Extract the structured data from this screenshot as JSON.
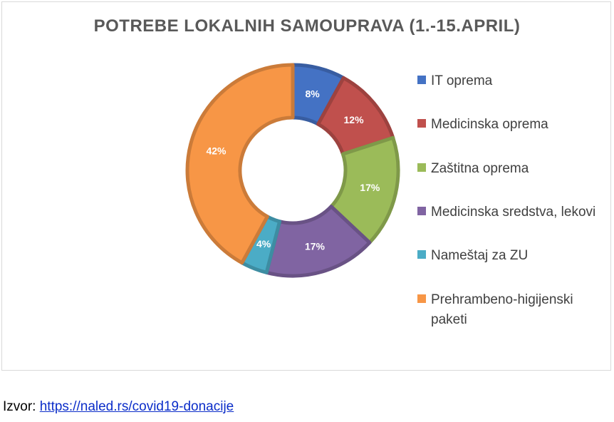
{
  "chart_data": {
    "type": "pie",
    "title": "POTREBE LOKALNIH SAMOUPRAVA (1.-15.APRIL)",
    "legend_position": "right",
    "slices": [
      {
        "label": "IT oprema",
        "value": 8,
        "value_label": "8%",
        "color": "#4472c4"
      },
      {
        "label": "Medicinska oprema",
        "value": 12,
        "value_label": "12%",
        "color": "#c0504d"
      },
      {
        "label": "Zaštitna oprema",
        "value": 17,
        "value_label": "17%",
        "color": "#9bbb59"
      },
      {
        "label": "Medicinska sredstva, lekovi",
        "value": 17,
        "value_label": "17%",
        "color": "#8064a2"
      },
      {
        "label": "Nameštaj za ZU",
        "value": 4,
        "value_label": "4%",
        "color": "#4bacc6"
      },
      {
        "label": "Prehrambeno-higijenski paketi",
        "value": 42,
        "value_label": "42%",
        "color": "#f79646"
      }
    ]
  },
  "source": {
    "prefix": "Izvor: ",
    "link_text": "https://naled.rs/covid19-donacije"
  }
}
